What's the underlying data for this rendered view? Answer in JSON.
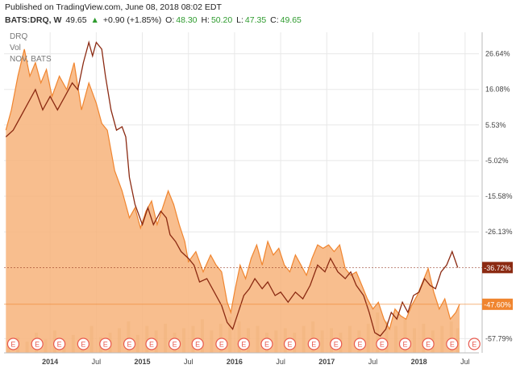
{
  "header": {
    "published": "Published on TradingView.com, June 08, 2018 08:02 EDT",
    "symbol": "BATS:DRQ, W",
    "last": "49.65",
    "up_arrow": "▲",
    "change": "+0.90 (+1.85%)",
    "o_label": "O:",
    "o_val": "48.30",
    "h_label": "H:",
    "h_val": "50.20",
    "l_label": "L:",
    "l_val": "47.35",
    "c_label": "C:",
    "c_val": "49.65"
  },
  "legend": {
    "symbol": "DRQ",
    "vol": "Vol",
    "compare": "NOV, BATS"
  },
  "colors": {
    "drq_fill": "#f7b37a",
    "drq_line": "#f0852f",
    "nov_line": "#8b2a12",
    "volume": "#d9c79a",
    "earnings": "#e85a4f",
    "grid": "#e8e8e8"
  },
  "earnings_marker": "E",
  "badges": {
    "nov": {
      "text": "-36.72%",
      "value": -36.72,
      "color": "#8b2a12"
    },
    "drq": {
      "text": "-47.60%",
      "value": -47.6,
      "color": "#f0852f"
    }
  },
  "chart_data": {
    "type": "area",
    "y_scale": "percent",
    "ylim": [
      -62,
      33
    ],
    "y_ticks": [
      26.64,
      16.08,
      5.53,
      -5.02,
      -15.58,
      -26.13,
      -57.79
    ],
    "y_tick_labels": [
      "26.64%",
      "16.08%",
      "5.53%",
      "-5.02%",
      "-15.58%",
      "-26.13%",
      "-57.79%"
    ],
    "x_ticks": [
      {
        "t": 2014.0,
        "label": "2014"
      },
      {
        "t": 2014.5,
        "label": "Jul"
      },
      {
        "t": 2015.0,
        "label": "2015"
      },
      {
        "t": 2015.5,
        "label": "Jul"
      },
      {
        "t": 2016.0,
        "label": "2016"
      },
      {
        "t": 2016.5,
        "label": "Jul"
      },
      {
        "t": 2017.0,
        "label": "2017"
      },
      {
        "t": 2017.5,
        "label": "Jul"
      },
      {
        "t": 2018.0,
        "label": "2018"
      },
      {
        "t": 2018.5,
        "label": "Jul"
      }
    ],
    "xlim": [
      2013.5,
      2018.65
    ],
    "earnings_dates": [
      2013.6,
      2013.86,
      2014.1,
      2014.36,
      2014.6,
      2014.86,
      2015.1,
      2015.35,
      2015.6,
      2015.86,
      2016.1,
      2016.35,
      2016.6,
      2016.86,
      2017.1,
      2017.36,
      2017.6,
      2017.85,
      2018.1,
      2018.36,
      2018.6
    ],
    "series": [
      {
        "name": "DRQ",
        "type": "area",
        "points": [
          [
            2013.52,
            4
          ],
          [
            2013.58,
            10
          ],
          [
            2013.65,
            20
          ],
          [
            2013.72,
            28
          ],
          [
            2013.78,
            20
          ],
          [
            2013.84,
            24
          ],
          [
            2013.9,
            18
          ],
          [
            2013.96,
            22
          ],
          [
            2014.02,
            14
          ],
          [
            2014.1,
            20
          ],
          [
            2014.18,
            16
          ],
          [
            2014.26,
            24
          ],
          [
            2014.34,
            10
          ],
          [
            2014.42,
            18
          ],
          [
            2014.5,
            12
          ],
          [
            2014.56,
            6
          ],
          [
            2014.62,
            4
          ],
          [
            2014.7,
            -8
          ],
          [
            2014.78,
            -14
          ],
          [
            2014.86,
            -22
          ],
          [
            2014.92,
            -19
          ],
          [
            2014.98,
            -25
          ],
          [
            2015.04,
            -20
          ],
          [
            2015.1,
            -17
          ],
          [
            2015.16,
            -24
          ],
          [
            2015.22,
            -19
          ],
          [
            2015.28,
            -14
          ],
          [
            2015.34,
            -18
          ],
          [
            2015.4,
            -24
          ],
          [
            2015.46,
            -29
          ],
          [
            2015.5,
            -35
          ],
          [
            2015.58,
            -32
          ],
          [
            2015.66,
            -38
          ],
          [
            2015.74,
            -33
          ],
          [
            2015.8,
            -36
          ],
          [
            2015.86,
            -38
          ],
          [
            2015.92,
            -47
          ],
          [
            2015.96,
            -50
          ],
          [
            2016.0,
            -44
          ],
          [
            2016.06,
            -36
          ],
          [
            2016.12,
            -40
          ],
          [
            2016.18,
            -34
          ],
          [
            2016.24,
            -30
          ],
          [
            2016.3,
            -36
          ],
          [
            2016.36,
            -29
          ],
          [
            2016.42,
            -33
          ],
          [
            2016.48,
            -31
          ],
          [
            2016.54,
            -36
          ],
          [
            2016.6,
            -38
          ],
          [
            2016.66,
            -33
          ],
          [
            2016.72,
            -36
          ],
          [
            2016.78,
            -39
          ],
          [
            2016.84,
            -34
          ],
          [
            2016.9,
            -30
          ],
          [
            2016.96,
            -31
          ],
          [
            2017.02,
            -30
          ],
          [
            2017.08,
            -32
          ],
          [
            2017.14,
            -30
          ],
          [
            2017.2,
            -37
          ],
          [
            2017.26,
            -39
          ],
          [
            2017.32,
            -38
          ],
          [
            2017.38,
            -42
          ],
          [
            2017.44,
            -46
          ],
          [
            2017.5,
            -49
          ],
          [
            2017.56,
            -47
          ],
          [
            2017.62,
            -52
          ],
          [
            2017.68,
            -55
          ],
          [
            2017.74,
            -49
          ],
          [
            2017.8,
            -51
          ],
          [
            2017.86,
            -52
          ],
          [
            2017.92,
            -48
          ],
          [
            2017.98,
            -45
          ],
          [
            2018.04,
            -41
          ],
          [
            2018.1,
            -37
          ],
          [
            2018.16,
            -44
          ],
          [
            2018.22,
            -49
          ],
          [
            2018.28,
            -46
          ],
          [
            2018.34,
            -52
          ],
          [
            2018.4,
            -50
          ],
          [
            2018.44,
            -47.6
          ]
        ]
      },
      {
        "name": "NOV",
        "type": "line",
        "points": [
          [
            2013.52,
            2
          ],
          [
            2013.6,
            4
          ],
          [
            2013.68,
            8
          ],
          [
            2013.76,
            12
          ],
          [
            2013.84,
            16
          ],
          [
            2013.92,
            10
          ],
          [
            2014.0,
            14
          ],
          [
            2014.08,
            10
          ],
          [
            2014.16,
            14
          ],
          [
            2014.24,
            18
          ],
          [
            2014.3,
            16
          ],
          [
            2014.36,
            24
          ],
          [
            2014.42,
            30
          ],
          [
            2014.46,
            26
          ],
          [
            2014.5,
            30
          ],
          [
            2014.56,
            28
          ],
          [
            2014.6,
            20
          ],
          [
            2014.66,
            10
          ],
          [
            2014.72,
            4
          ],
          [
            2014.78,
            5
          ],
          [
            2014.82,
            2
          ],
          [
            2014.86,
            -10
          ],
          [
            2014.92,
            -18
          ],
          [
            2015.0,
            -24
          ],
          [
            2015.06,
            -19
          ],
          [
            2015.12,
            -24
          ],
          [
            2015.2,
            -20
          ],
          [
            2015.26,
            -22
          ],
          [
            2015.3,
            -27
          ],
          [
            2015.36,
            -29
          ],
          [
            2015.42,
            -32
          ],
          [
            2015.5,
            -34
          ],
          [
            2015.56,
            -36
          ],
          [
            2015.62,
            -41
          ],
          [
            2015.7,
            -40
          ],
          [
            2015.78,
            -44
          ],
          [
            2015.86,
            -48
          ],
          [
            2015.92,
            -53
          ],
          [
            2015.98,
            -55
          ],
          [
            2016.04,
            -50
          ],
          [
            2016.1,
            -45
          ],
          [
            2016.16,
            -43
          ],
          [
            2016.22,
            -40
          ],
          [
            2016.3,
            -43
          ],
          [
            2016.36,
            -41
          ],
          [
            2016.44,
            -45
          ],
          [
            2016.5,
            -44
          ],
          [
            2016.58,
            -47
          ],
          [
            2016.66,
            -44
          ],
          [
            2016.74,
            -46
          ],
          [
            2016.82,
            -42
          ],
          [
            2016.9,
            -36
          ],
          [
            2016.98,
            -38
          ],
          [
            2017.04,
            -34
          ],
          [
            2017.12,
            -38
          ],
          [
            2017.2,
            -40
          ],
          [
            2017.26,
            -38
          ],
          [
            2017.32,
            -42
          ],
          [
            2017.4,
            -45
          ],
          [
            2017.46,
            -50
          ],
          [
            2017.52,
            -56
          ],
          [
            2017.58,
            -57
          ],
          [
            2017.64,
            -55
          ],
          [
            2017.7,
            -50
          ],
          [
            2017.76,
            -52
          ],
          [
            2017.82,
            -47
          ],
          [
            2017.88,
            -50
          ],
          [
            2017.94,
            -45
          ],
          [
            2018.0,
            -44
          ],
          [
            2018.06,
            -40
          ],
          [
            2018.12,
            -42
          ],
          [
            2018.18,
            -43
          ],
          [
            2018.24,
            -38
          ],
          [
            2018.3,
            -36
          ],
          [
            2018.36,
            -32
          ],
          [
            2018.42,
            -36.72
          ]
        ]
      },
      {
        "name": "Vol",
        "type": "bar",
        "points": [
          [
            2013.55,
            20
          ],
          [
            2013.65,
            35
          ],
          [
            2013.75,
            25
          ],
          [
            2013.85,
            45
          ],
          [
            2013.95,
            30
          ],
          [
            2014.05,
            50
          ],
          [
            2014.15,
            25
          ],
          [
            2014.25,
            40
          ],
          [
            2014.35,
            30
          ],
          [
            2014.45,
            60
          ],
          [
            2014.55,
            35
          ],
          [
            2014.65,
            45
          ],
          [
            2014.75,
            55
          ],
          [
            2014.85,
            70
          ],
          [
            2014.95,
            40
          ],
          [
            2015.05,
            60
          ],
          [
            2015.15,
            50
          ],
          [
            2015.25,
            65
          ],
          [
            2015.35,
            45
          ],
          [
            2015.45,
            55
          ],
          [
            2015.55,
            60
          ],
          [
            2015.65,
            75
          ],
          [
            2015.75,
            50
          ],
          [
            2015.85,
            65
          ],
          [
            2015.95,
            80
          ],
          [
            2016.05,
            70
          ],
          [
            2016.15,
            55
          ],
          [
            2016.25,
            60
          ],
          [
            2016.35,
            45
          ],
          [
            2016.45,
            50
          ],
          [
            2016.55,
            55
          ],
          [
            2016.65,
            45
          ],
          [
            2016.75,
            60
          ],
          [
            2016.85,
            70
          ],
          [
            2016.95,
            50
          ],
          [
            2017.05,
            55
          ],
          [
            2017.15,
            45
          ],
          [
            2017.25,
            60
          ],
          [
            2017.35,
            50
          ],
          [
            2017.45,
            65
          ],
          [
            2017.55,
            90
          ],
          [
            2017.65,
            70
          ],
          [
            2017.75,
            60
          ],
          [
            2017.85,
            75
          ],
          [
            2017.95,
            55
          ],
          [
            2018.05,
            65
          ],
          [
            2018.15,
            50
          ],
          [
            2018.25,
            60
          ],
          [
            2018.35,
            70
          ],
          [
            2018.42,
            55
          ]
        ]
      }
    ]
  }
}
